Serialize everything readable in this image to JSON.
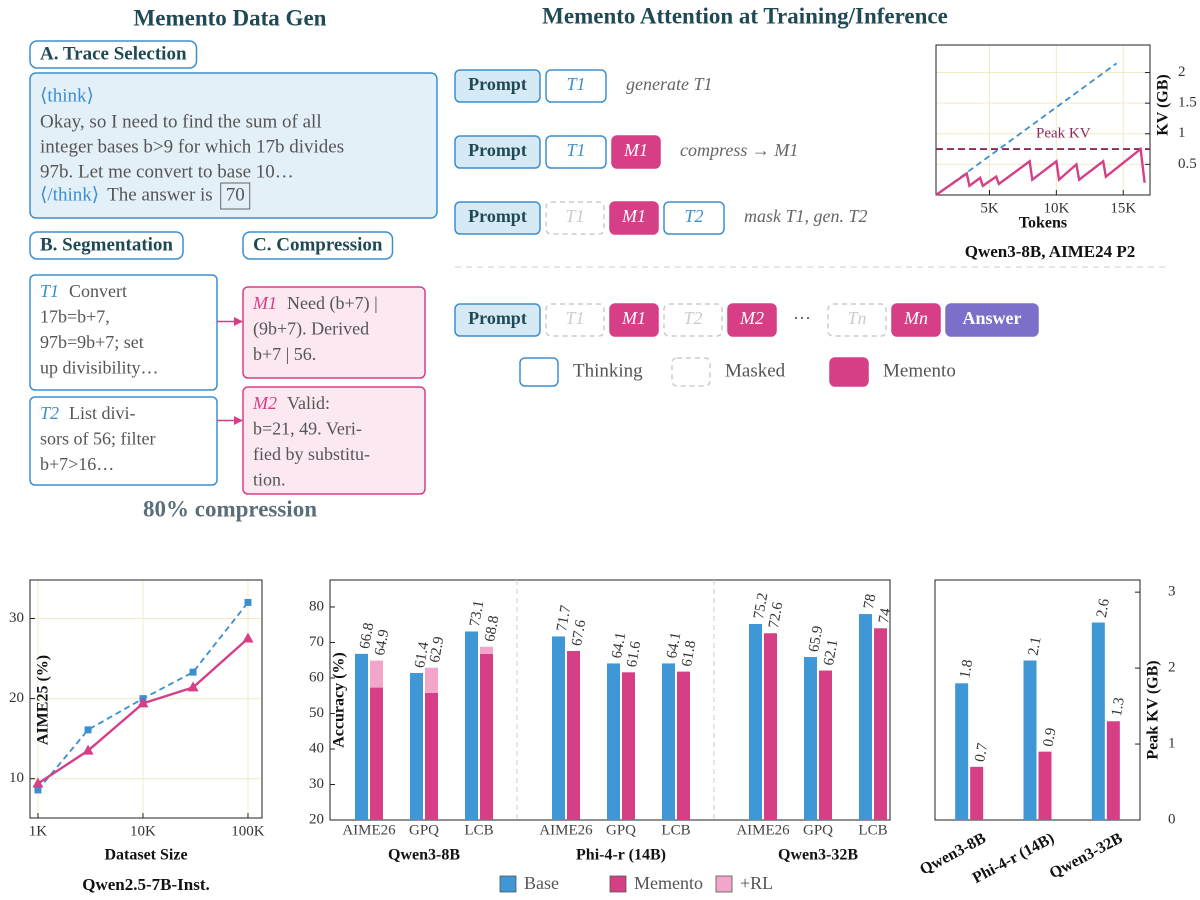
{
  "left_panel": {
    "title": "Memento Data Gen",
    "trace": {
      "label": "A. Trace Selection",
      "open_tag": "⟨think⟩",
      "lines": [
        "Okay, so I need to find the sum of all",
        "integer bases b>9 for which 17b divides",
        "97b. Let me convert to base 10…"
      ],
      "close_tag": "⟨/think⟩",
      "answer_prefix": "The answer is",
      "answer": "70"
    },
    "segmentation": {
      "label": "B. Segmentation",
      "segments": [
        {
          "name": "T1",
          "lines": [
            "Convert",
            "17b=b+7,",
            "97b=9b+7; set",
            "up divisibility…"
          ]
        },
        {
          "name": "T2",
          "lines": [
            "List divi-",
            "sors of 56; filter",
            "b+7>16…"
          ]
        }
      ]
    },
    "compression": {
      "label": "C. Compression",
      "mementos": [
        {
          "name": "M1",
          "lines": [
            "Need (b+7) |",
            "(9b+7). Derived",
            "b+7 | 56."
          ]
        },
        {
          "name": "M2",
          "lines": [
            "Valid:",
            "b=21, 49. Veri-",
            "fied by substitu-",
            "tion."
          ]
        }
      ]
    },
    "footer": "80% compression"
  },
  "attention_panel": {
    "title": "Memento Attention at Training/Inference",
    "rows": [
      {
        "blocks": [
          {
            "text": "Prompt",
            "kind": "prompt"
          },
          {
            "text": "T1",
            "kind": "thinking"
          }
        ],
        "note": "generate T1"
      },
      {
        "blocks": [
          {
            "text": "Prompt",
            "kind": "prompt"
          },
          {
            "text": "T1",
            "kind": "thinking"
          },
          {
            "text": "M1",
            "kind": "memento"
          }
        ],
        "note": "compress → M1"
      },
      {
        "blocks": [
          {
            "text": "Prompt",
            "kind": "prompt"
          },
          {
            "text": "T1",
            "kind": "masked"
          },
          {
            "text": "M1",
            "kind": "memento"
          },
          {
            "text": "T2",
            "kind": "thinking"
          }
        ],
        "note": "mask T1, gen. T2"
      },
      {
        "blocks": [
          {
            "text": "Prompt",
            "kind": "prompt"
          },
          {
            "text": "T1",
            "kind": "masked"
          },
          {
            "text": "M1",
            "kind": "memento"
          },
          {
            "text": "T2",
            "kind": "masked"
          },
          {
            "text": "M2",
            "kind": "memento"
          },
          {
            "text": "···",
            "kind": "ellipsis"
          },
          {
            "text": "Tn",
            "kind": "masked"
          },
          {
            "text": "Mn",
            "kind": "memento"
          },
          {
            "text": "Answer",
            "kind": "answer"
          }
        ]
      }
    ],
    "legend": [
      {
        "text": "Thinking",
        "kind": "thinking"
      },
      {
        "text": "Masked",
        "kind": "masked"
      },
      {
        "text": "Memento",
        "kind": "memento"
      }
    ]
  },
  "chart_data": [
    {
      "type": "line",
      "xlim": [
        1000,
        17000
      ],
      "ylim": [
        0,
        2.45
      ],
      "xticks": [
        {
          "value": 5000,
          "label": "5K"
        },
        {
          "value": 10000,
          "label": "10K"
        },
        {
          "value": 15000,
          "label": "15K"
        }
      ],
      "yticks": [
        0.5,
        1,
        1.5,
        2
      ],
      "y_axis_side": "right",
      "grid": true,
      "xlabel": "Tokens",
      "ylabel": "KV (GB)",
      "caption": "Qwen3-8B, AIME24 P2",
      "reference_lines": [
        {
          "value": 0.75,
          "label": "Peak KV",
          "color": "#8b2a5a"
        }
      ],
      "series": [
        {
          "color": "#3b8fd0",
          "style": "dashed",
          "x": [
            1000,
            14500
          ],
          "values": [
            0,
            2.15
          ]
        },
        {
          "color": "#d63f86",
          "style": "solid",
          "x": [
            1000,
            3300,
            3500,
            4300,
            4500,
            5500,
            5700,
            8000,
            8200,
            10000,
            10200,
            11500,
            11700,
            13500,
            13700,
            16300,
            16600
          ],
          "values": [
            0,
            0.35,
            0.15,
            0.28,
            0.15,
            0.3,
            0.18,
            0.55,
            0.25,
            0.55,
            0.25,
            0.5,
            0.25,
            0.55,
            0.3,
            0.75,
            0.2
          ]
        }
      ]
    },
    {
      "type": "line",
      "xscale": "log",
      "xlim": [
        840,
        136000
      ],
      "ylim": [
        5.1,
        34.8
      ],
      "xticks": [
        {
          "value": 1000,
          "label": "1K"
        },
        {
          "value": 10000,
          "label": "10K"
        },
        {
          "value": 100000,
          "label": "100K"
        }
      ],
      "yticks": [
        10,
        20,
        30
      ],
      "y_axis_side": "left",
      "grid": true,
      "xlabel": "Dataset Size",
      "ylabel": "AIME25 (%)",
      "caption": "Qwen2.5-7B-Inst.",
      "series": [
        {
          "color": "#3b8fd0",
          "style": "dashed",
          "marker": "square",
          "x": [
            1000,
            3000,
            10000,
            30000,
            100000
          ],
          "values": [
            8.6,
            16.1,
            20,
            23.3,
            32
          ]
        },
        {
          "color": "#d63f86",
          "style": "solid",
          "marker": "triangle",
          "x": [
            1000,
            3000,
            10000,
            30000,
            100000
          ],
          "values": [
            9.4,
            13.5,
            19.4,
            21.4,
            27.5
          ]
        }
      ]
    },
    {
      "type": "bar",
      "ylim": [
        20,
        87.6
      ],
      "yticks": [
        20,
        30,
        40,
        50,
        60,
        70,
        80
      ],
      "y_axis_side": "left",
      "ylabel": "Accuracy (%)",
      "categories": [
        "AIME26",
        "GPQ",
        "LCB",
        "AIME26",
        "GPQ",
        "LCB",
        "AIME26",
        "GPQ",
        "LCB"
      ],
      "groups": [
        "Qwen3-8B",
        "Phi-4-r (14B)",
        "Qwen3-32B"
      ],
      "legend": true,
      "series": [
        {
          "name": "Base",
          "color": "#3f97d6",
          "values": [
            66.8,
            61.4,
            73.1,
            71.7,
            64.1,
            64.1,
            75.2,
            65.9,
            78
          ]
        },
        {
          "name": "Memento",
          "color": "#d63f86",
          "values": [
            57.3,
            55.8,
            66.8,
            67.6,
            61.6,
            61.8,
            72.6,
            62.1,
            74
          ]
        },
        {
          "name": "+RL",
          "color": "#f2a6ca",
          "stacked": true,
          "values": [
            7.6,
            7.1,
            2.0,
            null,
            null,
            null,
            null,
            null,
            null
          ],
          "totals": [
            64.9,
            62.9,
            68.8,
            null,
            null,
            null,
            null,
            null,
            null
          ]
        }
      ]
    },
    {
      "type": "bar",
      "ylim": [
        0,
        3.16
      ],
      "yticks": [
        0,
        1,
        2,
        3
      ],
      "y_axis_side": "right",
      "ylabel": "Peak KV (GB)",
      "categories": [
        "Qwen3-8B",
        "Phi-4-r (14B)",
        "Qwen3-32B"
      ],
      "series": [
        {
          "name": "Base",
          "color": "#3f97d6",
          "values": [
            1.8,
            2.1,
            2.6
          ]
        },
        {
          "name": "Memento",
          "color": "#d63f86",
          "values": [
            0.7,
            0.9,
            1.3
          ]
        }
      ]
    }
  ]
}
